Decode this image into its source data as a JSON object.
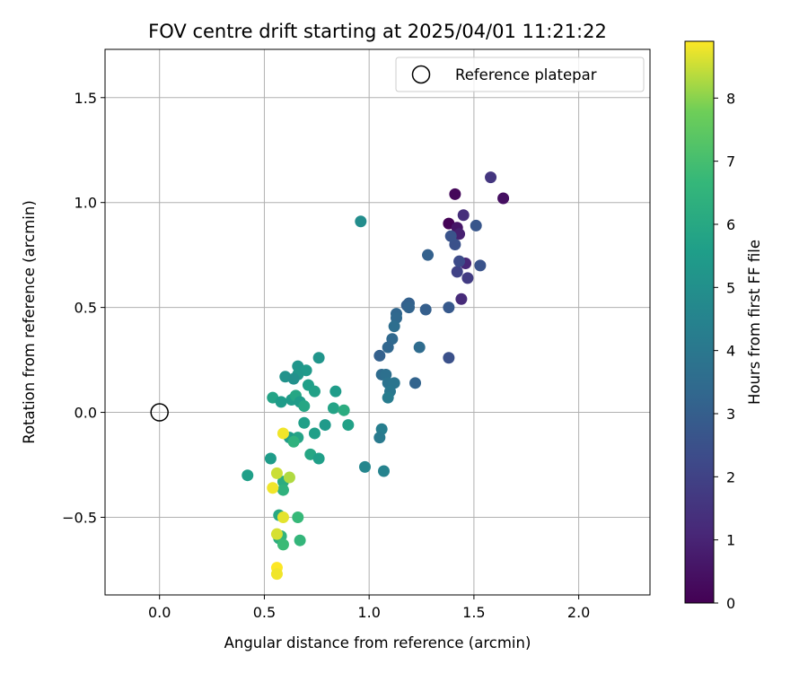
{
  "chart_data": {
    "type": "scatter",
    "title": "FOV centre drift starting at 2025/04/01 11:21:22",
    "xlabel": "Angular distance from reference (arcmin)",
    "ylabel": "Rotation from reference (arcmin)",
    "xlim": [
      -0.26,
      2.34
    ],
    "ylim": [
      -0.87,
      1.73
    ],
    "xticks": [
      0.0,
      0.5,
      1.0,
      1.5,
      2.0
    ],
    "yticks": [
      -0.5,
      0.0,
      0.5,
      1.0,
      1.5
    ],
    "xtick_labels": [
      "0.0",
      "0.5",
      "1.0",
      "1.5",
      "2.0"
    ],
    "ytick_labels": [
      "−0.5",
      "0.0",
      "0.5",
      "1.0",
      "1.5"
    ],
    "grid": true,
    "legend": {
      "position": "top-right",
      "entries": [
        "Reference platepar"
      ]
    },
    "reference_point": {
      "x": 0.0,
      "y": 0.0,
      "label": "Reference platepar"
    },
    "colorbar": {
      "label": "Hours from first FF file",
      "colormap": "viridis",
      "range": [
        0,
        8.9
      ],
      "ticks": [
        0,
        1,
        2,
        3,
        4,
        5,
        6,
        7,
        8
      ],
      "tick_labels": [
        "0",
        "1",
        "2",
        "3",
        "4",
        "5",
        "6",
        "7",
        "8"
      ]
    },
    "points": [
      {
        "x": 1.38,
        "y": 0.9,
        "c": 0.05
      },
      {
        "x": 1.41,
        "y": 1.04,
        "c": 0.2
      },
      {
        "x": 1.64,
        "y": 1.02,
        "c": 0.4
      },
      {
        "x": 1.42,
        "y": 0.88,
        "c": 0.6
      },
      {
        "x": 1.43,
        "y": 0.85,
        "c": 0.9
      },
      {
        "x": 1.45,
        "y": 0.94,
        "c": 1.3
      },
      {
        "x": 1.44,
        "y": 0.54,
        "c": 1.2
      },
      {
        "x": 1.46,
        "y": 0.71,
        "c": 1.1
      },
      {
        "x": 1.58,
        "y": 1.12,
        "c": 1.6
      },
      {
        "x": 1.47,
        "y": 0.64,
        "c": 1.8
      },
      {
        "x": 1.42,
        "y": 0.67,
        "c": 2.0
      },
      {
        "x": 1.43,
        "y": 0.72,
        "c": 2.3
      },
      {
        "x": 1.41,
        "y": 0.8,
        "c": 2.5
      },
      {
        "x": 1.39,
        "y": 0.84,
        "c": 2.6
      },
      {
        "x": 1.51,
        "y": 0.89,
        "c": 2.7
      },
      {
        "x": 1.53,
        "y": 0.7,
        "c": 2.6
      },
      {
        "x": 1.38,
        "y": 0.5,
        "c": 2.8
      },
      {
        "x": 1.38,
        "y": 0.26,
        "c": 2.5
      },
      {
        "x": 1.28,
        "y": 0.75,
        "c": 3.1
      },
      {
        "x": 1.27,
        "y": 0.49,
        "c": 3.0
      },
      {
        "x": 1.18,
        "y": 0.51,
        "c": 3.0
      },
      {
        "x": 1.19,
        "y": 0.52,
        "c": 3.1
      },
      {
        "x": 1.19,
        "y": 0.5,
        "c": 3.2
      },
      {
        "x": 1.13,
        "y": 0.47,
        "c": 3.3
      },
      {
        "x": 1.13,
        "y": 0.45,
        "c": 3.4
      },
      {
        "x": 1.12,
        "y": 0.41,
        "c": 3.6
      },
      {
        "x": 1.24,
        "y": 0.31,
        "c": 3.5
      },
      {
        "x": 1.11,
        "y": 0.35,
        "c": 3.4
      },
      {
        "x": 1.09,
        "y": 0.31,
        "c": 3.3
      },
      {
        "x": 1.05,
        "y": 0.27,
        "c": 3.1
      },
      {
        "x": 1.22,
        "y": 0.14,
        "c": 3.2
      },
      {
        "x": 1.06,
        "y": 0.18,
        "c": 3.5
      },
      {
        "x": 1.08,
        "y": 0.18,
        "c": 3.7
      },
      {
        "x": 1.09,
        "y": 0.14,
        "c": 3.8
      },
      {
        "x": 1.12,
        "y": 0.14,
        "c": 3.9
      },
      {
        "x": 1.1,
        "y": 0.1,
        "c": 4.0
      },
      {
        "x": 1.09,
        "y": 0.07,
        "c": 4.2
      },
      {
        "x": 1.06,
        "y": -0.08,
        "c": 4.3
      },
      {
        "x": 1.05,
        "y": -0.12,
        "c": 4.1
      },
      {
        "x": 0.96,
        "y": 0.91,
        "c": 4.9
      },
      {
        "x": 0.98,
        "y": -0.26,
        "c": 4.6
      },
      {
        "x": 1.07,
        "y": -0.28,
        "c": 4.5
      },
      {
        "x": 0.76,
        "y": 0.26,
        "c": 5.2
      },
      {
        "x": 0.66,
        "y": 0.22,
        "c": 5.2
      },
      {
        "x": 0.7,
        "y": 0.2,
        "c": 5.4
      },
      {
        "x": 0.66,
        "y": 0.18,
        "c": 5.3
      },
      {
        "x": 0.6,
        "y": 0.17,
        "c": 5.1
      },
      {
        "x": 0.64,
        "y": 0.16,
        "c": 5.0
      },
      {
        "x": 0.71,
        "y": 0.13,
        "c": 5.6
      },
      {
        "x": 0.74,
        "y": 0.1,
        "c": 5.7
      },
      {
        "x": 0.84,
        "y": 0.1,
        "c": 5.5
      },
      {
        "x": 0.54,
        "y": 0.07,
        "c": 5.8
      },
      {
        "x": 0.58,
        "y": 0.05,
        "c": 5.5
      },
      {
        "x": 0.63,
        "y": 0.06,
        "c": 5.5
      },
      {
        "x": 0.65,
        "y": 0.08,
        "c": 5.9
      },
      {
        "x": 0.67,
        "y": 0.05,
        "c": 5.5
      },
      {
        "x": 0.69,
        "y": 0.03,
        "c": 5.9
      },
      {
        "x": 0.83,
        "y": 0.02,
        "c": 5.8
      },
      {
        "x": 0.88,
        "y": 0.01,
        "c": 6.2
      },
      {
        "x": 0.69,
        "y": -0.05,
        "c": 5.6
      },
      {
        "x": 0.79,
        "y": -0.06,
        "c": 5.4
      },
      {
        "x": 0.9,
        "y": -0.06,
        "c": 5.7
      },
      {
        "x": 0.74,
        "y": -0.1,
        "c": 5.6
      },
      {
        "x": 0.62,
        "y": -0.12,
        "c": 5.5
      },
      {
        "x": 0.66,
        "y": -0.12,
        "c": 5.8
      },
      {
        "x": 0.64,
        "y": -0.14,
        "c": 6.4
      },
      {
        "x": 0.72,
        "y": -0.2,
        "c": 5.9
      },
      {
        "x": 0.76,
        "y": -0.22,
        "c": 5.6
      },
      {
        "x": 0.53,
        "y": -0.22,
        "c": 5.5
      },
      {
        "x": 0.42,
        "y": -0.3,
        "c": 5.6
      },
      {
        "x": 0.59,
        "y": -0.33,
        "c": 6.2
      },
      {
        "x": 0.59,
        "y": -0.37,
        "c": 6.4
      },
      {
        "x": 0.57,
        "y": -0.49,
        "c": 6.0
      },
      {
        "x": 0.66,
        "y": -0.5,
        "c": 6.7
      },
      {
        "x": 0.57,
        "y": -0.6,
        "c": 6.2
      },
      {
        "x": 0.58,
        "y": -0.59,
        "c": 6.5
      },
      {
        "x": 0.67,
        "y": -0.61,
        "c": 6.6
      },
      {
        "x": 0.59,
        "y": -0.63,
        "c": 6.8
      },
      {
        "x": 0.59,
        "y": -0.1,
        "c": 8.8
      },
      {
        "x": 0.56,
        "y": -0.29,
        "c": 8.5
      },
      {
        "x": 0.62,
        "y": -0.31,
        "c": 8.3
      },
      {
        "x": 0.54,
        "y": -0.36,
        "c": 8.8
      },
      {
        "x": 0.59,
        "y": -0.5,
        "c": 8.7
      },
      {
        "x": 0.56,
        "y": -0.58,
        "c": 8.6
      },
      {
        "x": 0.56,
        "y": -0.74,
        "c": 8.9
      },
      {
        "x": 0.56,
        "y": -0.77,
        "c": 8.8
      }
    ]
  }
}
